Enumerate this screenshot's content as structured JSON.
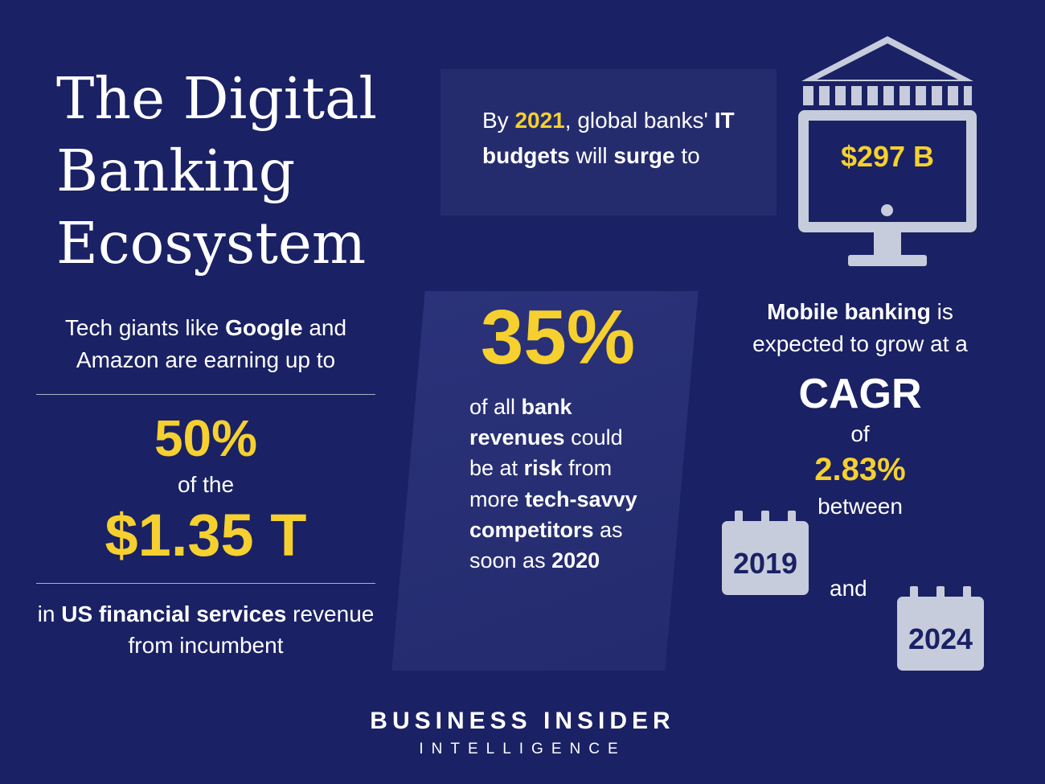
{
  "colors": {
    "background": "#1a2164",
    "panel": "#252c6e",
    "yellow": "#f5d02f",
    "icon": "#c6ccdb",
    "navy_text": "#1a2164"
  },
  "title": {
    "line1": "The Digital",
    "line2": "Banking",
    "line3": "Ecosystem"
  },
  "it_budget": {
    "text": [
      {
        "t": "By "
      },
      {
        "t": "2021",
        "s": "y"
      },
      {
        "t": ", global banks' "
      },
      {
        "t": "IT budgets",
        "s": "b"
      },
      {
        "t": " will "
      },
      {
        "t": "surge",
        "s": "b"
      },
      {
        "t": " to"
      }
    ],
    "monitor_value": "$297 B"
  },
  "left_stat": {
    "intro": [
      {
        "t": "Tech giants like "
      },
      {
        "t": "Google",
        "s": "b"
      },
      {
        "t": " and Amazon are earning up to"
      }
    ],
    "percent": "50%",
    "of_the": "of the",
    "amount": "$1.35 T",
    "footer": [
      {
        "t": "in "
      },
      {
        "t": "US financial services",
        "s": "b"
      },
      {
        "t": " revenue from incumbent"
      }
    ]
  },
  "middle_stat": {
    "percent": "35%",
    "body": [
      {
        "t": "of all "
      },
      {
        "t": "bank revenues",
        "s": "b"
      },
      {
        "t": " could be at "
      },
      {
        "t": "risk",
        "s": "b"
      },
      {
        "t": " from more "
      },
      {
        "t": "tech-savvy competitors",
        "s": "b"
      },
      {
        "t": " as soon as "
      },
      {
        "t": "2020",
        "s": "b"
      }
    ]
  },
  "right_stat": {
    "intro": [
      {
        "t": "Mobile banking",
        "s": "b"
      },
      {
        "t": " is expected to grow at a"
      }
    ],
    "cagr": "CAGR",
    "of": "of",
    "rate": "2.83%",
    "between": "between",
    "year_start": "2019",
    "and": "and",
    "year_end": "2024"
  },
  "brand": {
    "line1": "BUSINESS INSIDER",
    "line2": "INTELLIGENCE"
  },
  "chart_data": {
    "type": "table",
    "title": "The Digital Banking Ecosystem",
    "facts": [
      {
        "label": "Global banks' IT budgets by 2021",
        "value": "$297 B"
      },
      {
        "label": "Share of US financial services revenue tech giants are earning up to",
        "value": "50% of $1.35 T"
      },
      {
        "label": "Bank revenues at risk from tech-savvy competitors by 2020",
        "value": "35%"
      },
      {
        "label": "Mobile banking CAGR between 2019 and 2024",
        "value": "2.83%"
      }
    ]
  }
}
